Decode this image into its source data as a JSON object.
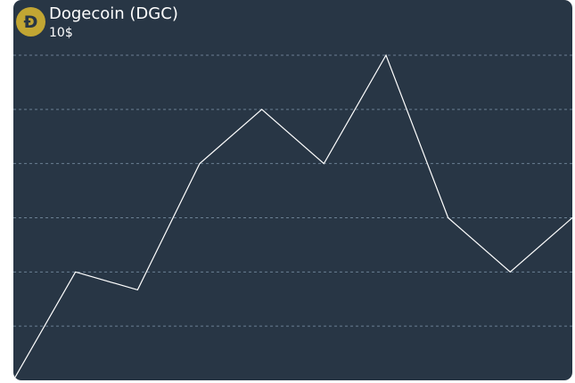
{
  "coin": {
    "icon": "dogecoin-icon",
    "symbol_glyph": "Ð",
    "title": "Dogecoin (DGC)",
    "price": "10$"
  },
  "colors": {
    "background": "#283645",
    "line": "#ffffff",
    "grid": "#6b7f93",
    "icon": "#c2a633"
  },
  "chart_data": {
    "type": "line",
    "title": "",
    "xlabel": "",
    "ylabel": "",
    "x": [
      0,
      1,
      2,
      3,
      4,
      5,
      6,
      7,
      8,
      9
    ],
    "series": [
      {
        "values": [
          0,
          2,
          1.67,
          4,
          5,
          4,
          6,
          3,
          2,
          3
        ]
      }
    ],
    "ylim": [
      0,
      6
    ],
    "xlim": [
      0,
      9
    ],
    "grid": "horizontal-dashed",
    "legend": "none"
  }
}
